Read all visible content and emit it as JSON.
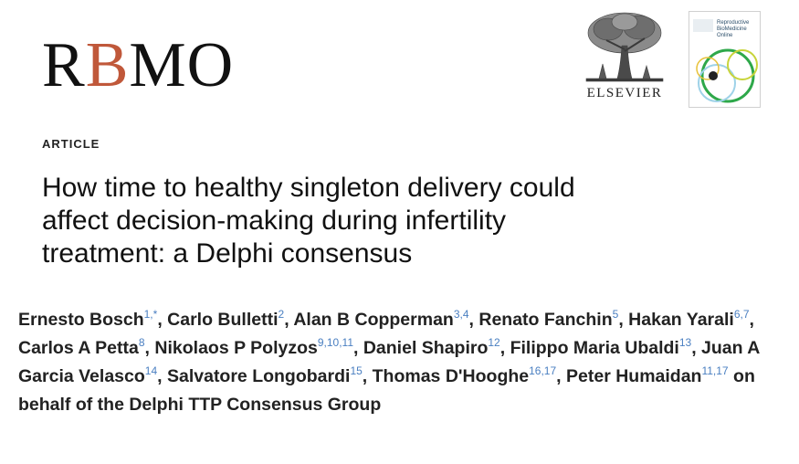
{
  "journal": {
    "logo_parts": [
      "R",
      "B",
      "MO"
    ],
    "accent_color": "#c0583a"
  },
  "publisher": {
    "name": "ELSEVIER",
    "logo_icon": "elsevier-tree-icon"
  },
  "cover": {
    "title_lines": [
      "Reproductive",
      "BioMedicine",
      "Online"
    ],
    "colors": [
      "#2ea84a",
      "#9ed2e8",
      "#c8d43a",
      "#e8c23a",
      "#222222"
    ]
  },
  "article": {
    "type_label": "ARTICLE",
    "title_lines": [
      "How time to healthy singleton delivery could",
      "affect decision-making during infertility",
      "treatment: a Delphi consensus"
    ]
  },
  "authors": [
    {
      "name": "Ernesto Bosch",
      "aff": "1,*",
      "sep": ", "
    },
    {
      "name": "Carlo Bulletti",
      "aff": "2",
      "sep": ", "
    },
    {
      "name": "Alan B Copperman",
      "aff": "3,4",
      "sep": ", "
    },
    {
      "name": "Renato Fanchin",
      "aff": "5",
      "sep": ", "
    },
    {
      "name": "Hakan Yarali",
      "aff": "6,7",
      "sep": ", "
    },
    {
      "name": "Carlos A Petta",
      "aff": "8",
      "sep": ", "
    },
    {
      "name": "Nikolaos P Polyzos",
      "aff": "9,10,11",
      "sep": ", "
    },
    {
      "name": "Daniel Shapiro",
      "aff": "12",
      "sep": ", "
    },
    {
      "name": "Filippo Maria Ubaldi",
      "aff": "13",
      "sep": ", "
    },
    {
      "name": "Juan A Garcia Velasco",
      "aff": "14",
      "sep": ", "
    },
    {
      "name": "Salvatore Longobardi",
      "aff": "15",
      "sep": ", "
    },
    {
      "name": "Thomas D'Hooghe",
      "aff": "16,17",
      "sep": ", "
    },
    {
      "name": "Peter Humaidan",
      "aff": "11,17",
      "sep": " "
    }
  ],
  "authors_suffix": "on behalf of the Delphi TTP Consensus Group",
  "affiliation_color": "#4a7fc1"
}
